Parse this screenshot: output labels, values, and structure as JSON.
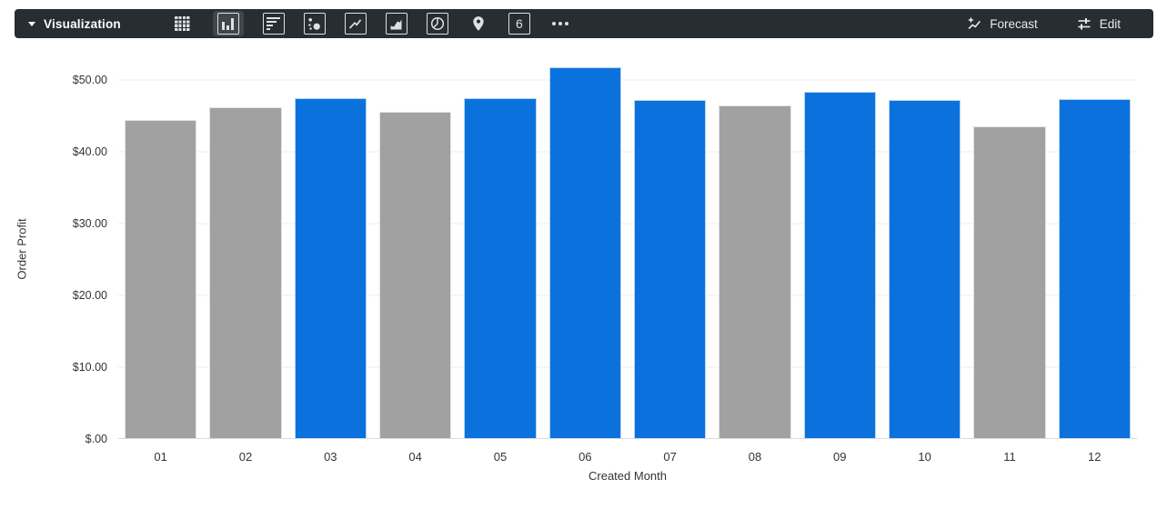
{
  "toolbar": {
    "title": "Visualization",
    "background": "#272d33",
    "chart_type_icons": [
      "table-icon",
      "column-chart-icon",
      "bar-chart-icon",
      "scatter-chart-icon",
      "line-chart-icon",
      "area-chart-icon",
      "pie-chart-icon",
      "map-pin-icon",
      "single-value-icon",
      "more-options-icon"
    ],
    "selected_chart_type": "column",
    "single_value_icon_label": "6",
    "forecast_label": "Forecast",
    "edit_label": "Edit"
  },
  "chart_data": {
    "type": "bar",
    "title": "",
    "xlabel": "Created Month",
    "ylabel": "Order Profit",
    "categories": [
      "01",
      "02",
      "03",
      "04",
      "05",
      "06",
      "07",
      "08",
      "09",
      "10",
      "11",
      "12"
    ],
    "values": [
      44.4,
      46.2,
      47.4,
      45.5,
      47.4,
      51.8,
      47.2,
      46.5,
      48.4,
      47.2,
      43.6,
      47.3
    ],
    "bar_colors": [
      "gray",
      "gray",
      "blue",
      "gray",
      "blue",
      "blue",
      "blue",
      "gray",
      "blue",
      "blue",
      "gray",
      "blue"
    ],
    "color_default": "#a1a1a1",
    "color_accent": "#0b72dd",
    "ylim": [
      0,
      52.9
    ],
    "yticks": [
      {
        "value": 0,
        "label": "$.00"
      },
      {
        "value": 10,
        "label": "$10.00"
      },
      {
        "value": 20,
        "label": "$20.00"
      },
      {
        "value": 30,
        "label": "$30.00"
      },
      {
        "value": 40,
        "label": "$40.00"
      },
      {
        "value": 50,
        "label": "$50.00"
      }
    ],
    "grid": true,
    "legend": "none"
  }
}
